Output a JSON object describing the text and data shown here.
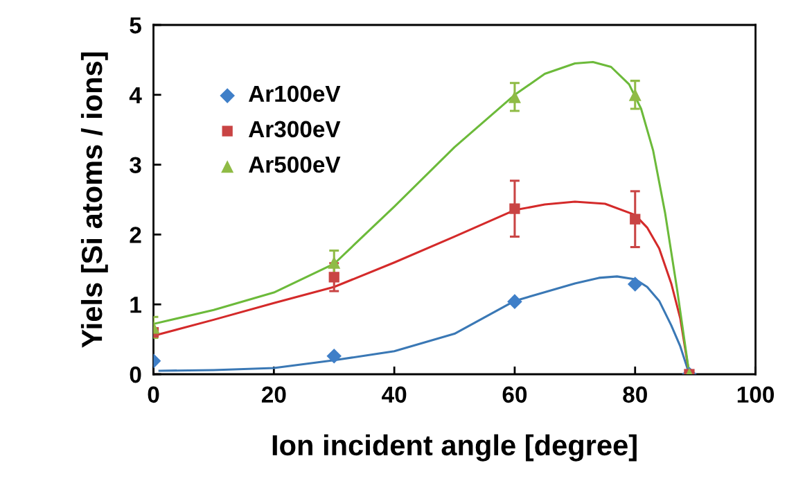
{
  "chart_data": {
    "type": "scatter",
    "xlabel": "Ion incident angle [degree]",
    "ylabel": "Yiels [Si atoms / ions]",
    "xlim": [
      0,
      100
    ],
    "xticks": [
      0,
      20,
      40,
      60,
      80,
      100
    ],
    "ylim": [
      0,
      5
    ],
    "yticks": [
      0,
      1,
      2,
      3,
      4,
      5
    ],
    "grid": false,
    "legend": "top left",
    "series": [
      {
        "type": "line",
        "color": "#3a78b5",
        "marker": "none",
        "x": [
          1,
          10,
          20,
          30,
          40,
          50,
          60,
          70,
          74,
          77,
          80,
          82,
          84,
          86,
          87.5,
          89
        ],
        "values": [
          0.05,
          0.06,
          0.09,
          0.2,
          0.33,
          0.58,
          1.05,
          1.3,
          1.38,
          1.4,
          1.36,
          1.25,
          1.05,
          0.7,
          0.4,
          0
        ]
      },
      {
        "type": "line",
        "color": "#d42a2a",
        "marker": "none",
        "x": [
          0,
          10,
          20,
          30,
          40,
          50,
          60,
          65,
          70,
          75,
          80,
          82,
          84,
          86,
          87.5,
          89
        ],
        "values": [
          0.55,
          0.78,
          1.02,
          1.25,
          1.6,
          1.97,
          2.35,
          2.43,
          2.47,
          2.44,
          2.28,
          2.1,
          1.8,
          1.3,
          0.8,
          0
        ]
      },
      {
        "type": "line",
        "color": "#6cba3a",
        "marker": "none",
        "x": [
          0,
          10,
          20,
          30,
          40,
          50,
          60,
          65,
          70,
          73,
          76,
          79,
          81,
          83,
          85,
          87,
          89
        ],
        "values": [
          0.72,
          0.92,
          1.17,
          1.58,
          2.4,
          3.25,
          4.0,
          4.3,
          4.45,
          4.47,
          4.4,
          4.15,
          3.8,
          3.2,
          2.3,
          1.2,
          0
        ]
      },
      {
        "name": "Ar100eV",
        "color": "#3f7fc8",
        "marker": "diamond",
        "x": [
          0,
          30,
          60,
          80,
          89
        ],
        "values": [
          0.19,
          0.26,
          1.04,
          1.29,
          0
        ]
      },
      {
        "name": "Ar300eV",
        "color": "#c94444",
        "marker": "square",
        "x": [
          0,
          30,
          60,
          80,
          89
        ],
        "values": [
          0.6,
          1.39,
          2.37,
          2.22,
          0
        ],
        "errors": [
          null,
          0.2,
          0.4,
          0.4,
          null
        ]
      },
      {
        "name": "Ar500eV",
        "color": "#8fbb45",
        "marker": "triangle",
        "x": [
          0,
          30,
          60,
          80,
          89
        ],
        "values": [
          0.67,
          1.6,
          3.97,
          4.0,
          0
        ],
        "errors": [
          0.15,
          0.17,
          0.2,
          0.2,
          null
        ]
      }
    ]
  }
}
